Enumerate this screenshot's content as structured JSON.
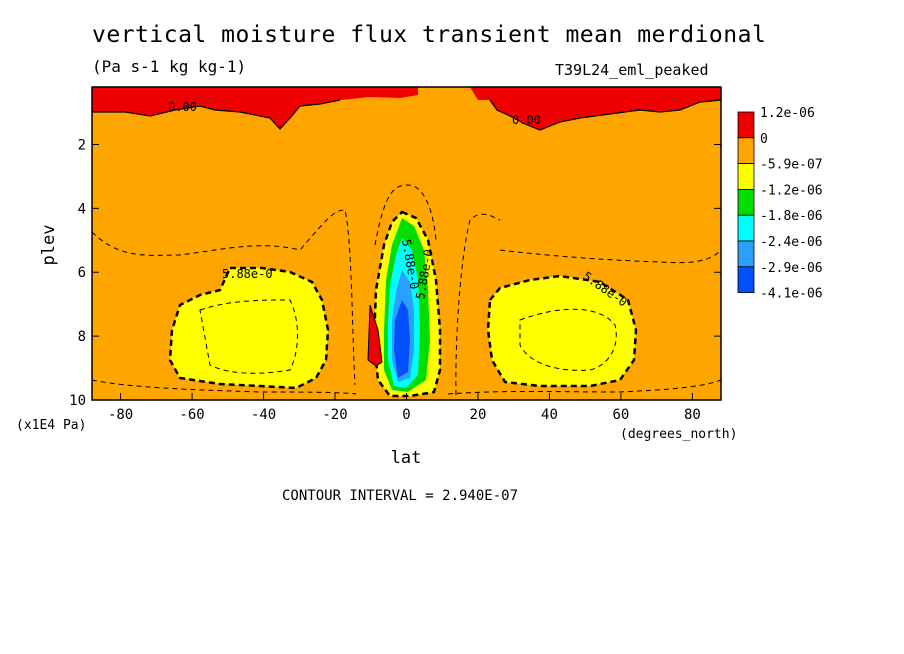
{
  "header": {
    "title": "vertical moisture flux transient mean merdional",
    "units": "(Pa s-1 kg kg-1)",
    "dataset": "T39L24_eml_peaked"
  },
  "footer": {
    "contour_interval": "CONTOUR INTERVAL = 2.940E-07"
  },
  "chart_data": {
    "type": "heatmap",
    "title": "vertical moisture flux transient mean merdional",
    "xlabel": "lat",
    "xunit": "(degrees_north)",
    "ylabel": "plev",
    "yunit": "(x1E4 Pa)",
    "xlim": [
      -88,
      88
    ],
    "ylim": [
      10,
      0.2
    ],
    "xticks": [
      -80,
      -60,
      -40,
      -20,
      0,
      20,
      40,
      60,
      80
    ],
    "yticks": [
      2,
      4,
      6,
      8,
      10
    ],
    "colorbar": {
      "labels": [
        "1.2e-06",
        "0",
        "-5.9e-07",
        "-1.2e-06",
        "-1.8e-06",
        "-2.4e-06",
        "-2.9e-06",
        "-4.1e-06"
      ],
      "colors": [
        "#ee0000",
        "#ffa500",
        "#ffff00",
        "#00dd00",
        "#00ffff",
        "#2ba0ff",
        "#0050ff"
      ]
    },
    "contour_labels": [
      "0.00",
      "0.00",
      "5.88e-0",
      "5.88e-0",
      "5.88e-0",
      "5.88e-0"
    ],
    "grid": false
  },
  "colors": {
    "red": "#ee0000",
    "orange": "#ffa500",
    "yellow": "#ffff00",
    "green": "#00dd00",
    "cyan": "#00ffff",
    "lightblue": "#2ba0ff",
    "blue": "#0050ff"
  }
}
